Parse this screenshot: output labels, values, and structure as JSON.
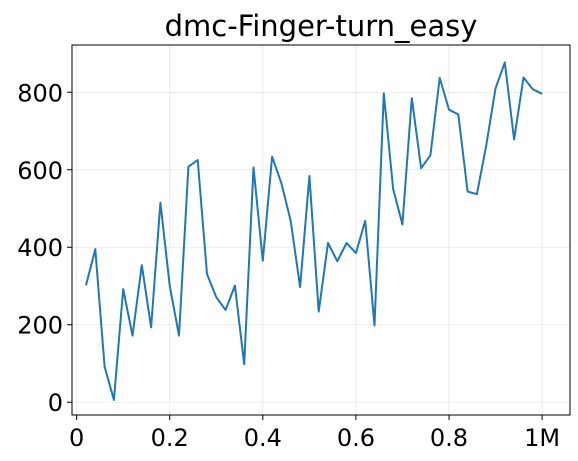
{
  "chart_data": {
    "type": "line",
    "title": "dmc-Finger-turn_easy",
    "xlabel": "",
    "ylabel": "",
    "xlim": [
      -0.01,
      1.06
    ],
    "ylim": [
      -33,
      922
    ],
    "grid": true,
    "x_ticks": [
      {
        "value": 0,
        "label": "0"
      },
      {
        "value": 0.2,
        "label": "0.2"
      },
      {
        "value": 0.4,
        "label": "0.4"
      },
      {
        "value": 0.6,
        "label": "0.6"
      },
      {
        "value": 0.8,
        "label": "0.8"
      },
      {
        "value": 1.0,
        "label": "1M"
      }
    ],
    "y_ticks": [
      {
        "value": 0,
        "label": "0"
      },
      {
        "value": 200,
        "label": "200"
      },
      {
        "value": 400,
        "label": "400"
      },
      {
        "value": 600,
        "label": "600"
      },
      {
        "value": 800,
        "label": "800"
      }
    ],
    "series": [
      {
        "color": "#1f77b4",
        "x": [
          0.02,
          0.04,
          0.06,
          0.08,
          0.1,
          0.12,
          0.14,
          0.16,
          0.18,
          0.2,
          0.22,
          0.24,
          0.26,
          0.28,
          0.3,
          0.32,
          0.34,
          0.36,
          0.38,
          0.4,
          0.42,
          0.44,
          0.46,
          0.48,
          0.5,
          0.52,
          0.54,
          0.56,
          0.58,
          0.6,
          0.62,
          0.64,
          0.66,
          0.68,
          0.7,
          0.72,
          0.74,
          0.76,
          0.78,
          0.8,
          0.82,
          0.84,
          0.86,
          0.88,
          0.9,
          0.92,
          0.94,
          0.96,
          0.98,
          1.0
        ],
        "y": [
          302,
          395,
          92,
          6,
          292,
          172,
          354,
          193,
          515,
          301,
          172,
          608,
          625,
          331,
          271,
          238,
          301,
          98,
          606,
          365,
          634,
          565,
          468,
          297,
          584,
          234,
          411,
          364,
          411,
          385,
          468,
          198,
          797,
          551,
          459,
          785,
          604,
          637,
          837,
          755,
          743,
          544,
          537,
          662,
          810,
          877,
          678,
          838,
          808,
          796
        ]
      }
    ]
  }
}
